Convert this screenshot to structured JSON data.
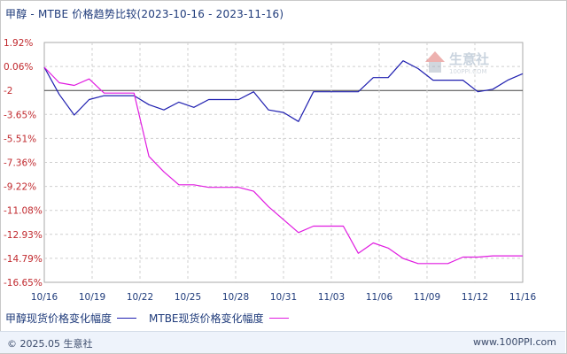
{
  "title": "甲醇 - MTBE 价格趋势比较(2023-10-16 - 2023-11-16)",
  "watermark": {
    "text": "生意社",
    "subtext": "100PPI.COM"
  },
  "footer": {
    "copyright": "© 2025.05 生意社",
    "site": "www.100PPI.com"
  },
  "colors": {
    "series1": "#1f1fb0",
    "series2": "#e01be0",
    "ytick": "#c0282d",
    "grid": "#cfcfcf"
  },
  "chart_data": {
    "type": "line",
    "title": "甲醇 - MTBE 价格趋势比较(2023-10-16 - 2023-11-16)",
    "xlabel": "",
    "ylabel": "",
    "x_start": "10/16",
    "x_end": "11/16",
    "ylim": [
      -16.65,
      1.92
    ],
    "ytick_labels": [
      "1.92%",
      "0.06%",
      "-2",
      "-3.65%",
      "-5.51%",
      "-7.36%",
      "-9.22%",
      "-11.08%",
      "-12.93%",
      "-14.79%",
      "-16.65%"
    ],
    "xtick_labels": [
      "10/16",
      "10/19",
      "10/22",
      "10/25",
      "10/28",
      "10/31",
      "11/03",
      "11/06",
      "11/09",
      "11/12",
      "11/16"
    ],
    "grid": true,
    "legend_position": "bottom",
    "series": [
      {
        "name": "甲醇现货价格变化幅度",
        "points": [
          [
            0,
            0.0
          ],
          [
            1,
            -2.1
          ],
          [
            2,
            -3.7
          ],
          [
            3,
            -2.5
          ],
          [
            4,
            -2.2
          ],
          [
            5,
            -2.2
          ],
          [
            6,
            -2.2
          ],
          [
            7,
            -2.9
          ],
          [
            8,
            -3.3
          ],
          [
            9,
            -2.7
          ],
          [
            10,
            -3.1
          ],
          [
            11,
            -2.5
          ],
          [
            12,
            -2.5
          ],
          [
            13,
            -2.5
          ],
          [
            14,
            -1.9
          ],
          [
            15,
            -3.3
          ],
          [
            16,
            -3.5
          ],
          [
            17,
            -4.2
          ],
          [
            18,
            -1.9
          ],
          [
            19,
            -1.9
          ],
          [
            20,
            -1.9
          ],
          [
            21,
            -1.9
          ],
          [
            22,
            -0.8
          ],
          [
            23,
            -0.8
          ],
          [
            24,
            0.5
          ],
          [
            25,
            -0.1
          ],
          [
            26,
            -1.0
          ],
          [
            27,
            -1.0
          ],
          [
            28,
            -1.0
          ],
          [
            29,
            -1.9
          ],
          [
            30,
            -1.7
          ],
          [
            31,
            -1.0
          ],
          [
            32,
            -0.5
          ]
        ]
      },
      {
        "name": "MTBE现货价格变化幅度",
        "points": [
          [
            0,
            0.0
          ],
          [
            1,
            -1.2
          ],
          [
            2,
            -1.4
          ],
          [
            3,
            -0.9
          ],
          [
            4,
            -2.0
          ],
          [
            5,
            -2.0
          ],
          [
            6,
            -2.0
          ],
          [
            7,
            -6.9
          ],
          [
            8,
            -8.1
          ],
          [
            9,
            -9.1
          ],
          [
            10,
            -9.1
          ],
          [
            11,
            -9.3
          ],
          [
            12,
            -9.3
          ],
          [
            13,
            -9.3
          ],
          [
            14,
            -9.6
          ],
          [
            15,
            -10.8
          ],
          [
            16,
            -11.8
          ],
          [
            17,
            -12.8
          ],
          [
            18,
            -12.3
          ],
          [
            19,
            -12.3
          ],
          [
            20,
            -12.3
          ],
          [
            21,
            -14.4
          ],
          [
            22,
            -13.6
          ],
          [
            23,
            -14.0
          ],
          [
            24,
            -14.8
          ],
          [
            25,
            -15.2
          ],
          [
            26,
            -15.2
          ],
          [
            27,
            -15.2
          ],
          [
            28,
            -14.7
          ],
          [
            29,
            -14.7
          ],
          [
            30,
            -14.6
          ],
          [
            31,
            -14.6
          ],
          [
            32,
            -14.6
          ]
        ]
      }
    ]
  }
}
